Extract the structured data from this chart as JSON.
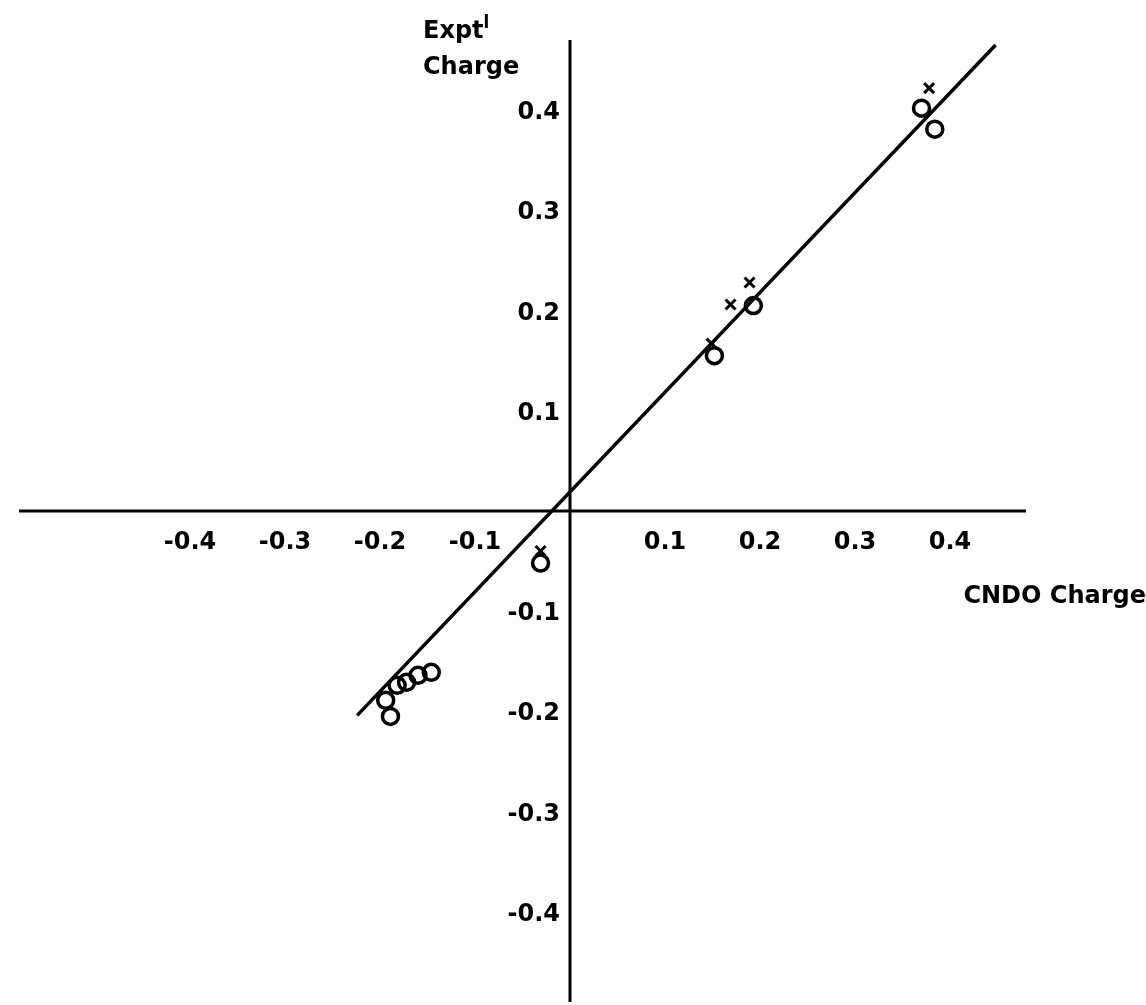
{
  "chart_data": {
    "type": "scatter",
    "xlabel": "CNDO Charge",
    "ylabel": "Expt$^{l}$\nCharge",
    "xlim": [
      -0.58,
      0.48
    ],
    "ylim": [
      -0.49,
      0.47
    ],
    "xticks": [
      {
        "value": -0.4,
        "label": "-0.4"
      },
      {
        "value": -0.3,
        "label": "-0.3"
      },
      {
        "value": -0.2,
        "label": "-0.2"
      },
      {
        "value": -0.1,
        "label": "-0.1"
      },
      {
        "value": 0.1,
        "label": "0.1"
      },
      {
        "value": 0.2,
        "label": "0.2"
      },
      {
        "value": 0.3,
        "label": "0.3"
      },
      {
        "value": 0.4,
        "label": "0.4"
      }
    ],
    "yticks": [
      {
        "value": -0.4,
        "label": "-0.4"
      },
      {
        "value": -0.3,
        "label": "-0.3"
      },
      {
        "value": -0.2,
        "label": "-0.2"
      },
      {
        "value": -0.1,
        "label": "-0.1"
      },
      {
        "value": 0.1,
        "label": "0.1"
      },
      {
        "value": 0.2,
        "label": "0.2"
      },
      {
        "value": 0.3,
        "label": "0.3"
      },
      {
        "value": 0.4,
        "label": "0.4"
      }
    ],
    "grid": false,
    "series": [
      {
        "marker": "circle",
        "color": "#000000",
        "x": [
          0.37,
          0.384,
          0.193,
          0.152,
          -0.146,
          -0.16,
          -0.172,
          -0.182,
          -0.194,
          -0.189,
          -0.031
        ],
        "values": [
          0.402,
          0.381,
          0.205,
          0.155,
          -0.161,
          -0.164,
          -0.171,
          -0.174,
          -0.189,
          -0.205,
          -0.052
        ]
      },
      {
        "marker": "cross",
        "color": "#000000",
        "x": [
          0.378,
          0.189,
          0.169,
          0.149,
          -0.031
        ],
        "values": [
          0.422,
          0.228,
          0.206,
          0.167,
          -0.04
        ]
      },
      {
        "type": "line",
        "marker": "none",
        "line_style": "solid",
        "color": "#000000",
        "x": [
          -0.224,
          0.448
        ],
        "values": [
          -0.204,
          0.465
        ]
      }
    ]
  }
}
